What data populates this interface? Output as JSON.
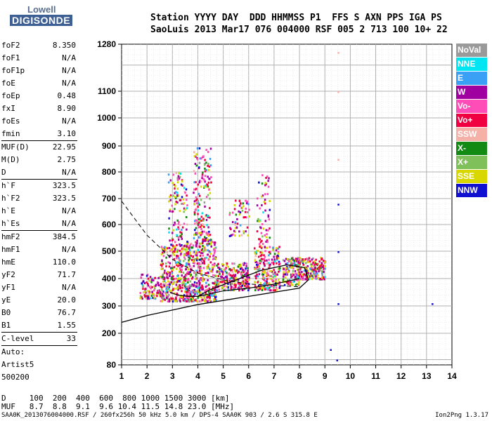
{
  "logo": {
    "line1": "Lowell",
    "line2": "DIGISONDE"
  },
  "header": {
    "line1": "Station YYYY DAY  DDD HHMMSS P1  FFS S AXN PPS IGA PS",
    "line2": "SaoLuis 2013 Mar17 076 004000 RSF 005 2 713 100 10+ 22"
  },
  "params": {
    "group1": [
      {
        "name": "foF2",
        "value": "8.350"
      },
      {
        "name": "foF1",
        "value": "N/A"
      },
      {
        "name": "foF1p",
        "value": "N/A"
      },
      {
        "name": "foE",
        "value": "N/A"
      },
      {
        "name": "foEp",
        "value": "0.48"
      },
      {
        "name": "fxI",
        "value": "8.90"
      },
      {
        "name": "foEs",
        "value": "N/A"
      },
      {
        "name": "fmin",
        "value": "3.10"
      }
    ],
    "group2": [
      {
        "name": "MUF(D)",
        "value": "22.95"
      },
      {
        "name": "M(D)",
        "value": "2.75"
      },
      {
        "name": "D",
        "value": "N/A"
      }
    ],
    "group3": [
      {
        "name": "h`F",
        "value": "323.5"
      },
      {
        "name": "h`F2",
        "value": "323.5"
      },
      {
        "name": "h`E",
        "value": "N/A"
      },
      {
        "name": "h`Es",
        "value": "N/A"
      }
    ],
    "group4": [
      {
        "name": "hmF2",
        "value": "384.5"
      },
      {
        "name": "hmF1",
        "value": "N/A"
      },
      {
        "name": "hmE",
        "value": "110.0"
      },
      {
        "name": "yF2",
        "value": "71.7"
      },
      {
        "name": "yF1",
        "value": "N/A"
      },
      {
        "name": "yE",
        "value": "20.0"
      },
      {
        "name": "B0",
        "value": "76.7"
      },
      {
        "name": "B1",
        "value": "1.55"
      }
    ],
    "clevel": {
      "name": "C-level",
      "value": "33"
    },
    "auto": [
      "Auto:",
      "Artist5",
      "500200"
    ]
  },
  "legend": [
    {
      "label": "NoVal",
      "color": "#9a9a9a"
    },
    {
      "label": "NNE",
      "color": "#00e5f2"
    },
    {
      "label": "E",
      "color": "#3aa0f5"
    },
    {
      "label": "W",
      "color": "#a000a0"
    },
    {
      "label": "Vo-",
      "color": "#ff4db8"
    },
    {
      "label": "Vo+",
      "color": "#f00040"
    },
    {
      "label": "SSW",
      "color": "#f5b0a8"
    },
    {
      "label": "X-",
      "color": "#138a13"
    },
    {
      "label": "X+",
      "color": "#7fc05a"
    },
    {
      "label": "SSE",
      "color": "#d8d800"
    },
    {
      "label": "NNW",
      "color": "#1010d0"
    }
  ],
  "footer": {
    "d_row": "D     100  200  400  600  800 1000 1500 3000 [km]",
    "muf_row": "MUF   8.7  8.8  9.1  9.6 10.4 11.5 14.8 23.0 [MHz]",
    "file_line": "SAA0K_2013076004000.RSF / 260fx256h 50 kHz 5.0 km / DPS-4 SAA0K 903 / 2.6 S 315.8 E",
    "version": "Ion2Png 1.3.17"
  },
  "chart_data": {
    "type": "scatter",
    "title": "",
    "xlabel": "",
    "ylabel": "",
    "xlim": [
      1,
      14
    ],
    "ylim": [
      80,
      1280
    ],
    "xticks": [
      1,
      2,
      3,
      4,
      5,
      6,
      7,
      8,
      9,
      10,
      11,
      12,
      13,
      14
    ],
    "yticks": [
      80,
      200,
      300,
      400,
      500,
      600,
      700,
      800,
      900,
      1000,
      1100,
      1280
    ],
    "grid": true,
    "clusters": [
      {
        "x": [
          1.7,
          2.8
        ],
        "y": [
          330,
          420
        ],
        "n": 130
      },
      {
        "x": [
          2.5,
          3.7
        ],
        "y": [
          320,
          520
        ],
        "n": 340
      },
      {
        "x": [
          2.8,
          3.6
        ],
        "y": [
          520,
          800
        ],
        "n": 120
      },
      {
        "x": [
          3.5,
          4.7
        ],
        "y": [
          320,
          540
        ],
        "n": 380
      },
      {
        "x": [
          3.8,
          4.5
        ],
        "y": [
          540,
          900
        ],
        "n": 180
      },
      {
        "x": [
          4.7,
          6.0
        ],
        "y": [
          360,
          460
        ],
        "n": 230
      },
      {
        "x": [
          5.2,
          6.0
        ],
        "y": [
          560,
          700
        ],
        "n": 60
      },
      {
        "x": [
          6.2,
          7.2
        ],
        "y": [
          360,
          520
        ],
        "n": 230
      },
      {
        "x": [
          6.3,
          6.8
        ],
        "y": [
          520,
          800
        ],
        "n": 60
      },
      {
        "x": [
          7.3,
          8.0
        ],
        "y": [
          380,
          480
        ],
        "n": 120
      },
      {
        "x": [
          7.9,
          9.0
        ],
        "y": [
          400,
          480
        ],
        "n": 200
      }
    ],
    "isolated": [
      {
        "x": 9.5,
        "y": 1250
      },
      {
        "x": 9.5,
        "y": 1100
      },
      {
        "x": 9.5,
        "y": 850
      },
      {
        "x": 9.5,
        "y": 680
      },
      {
        "x": 9.5,
        "y": 500
      },
      {
        "x": 9.5,
        "y": 310
      },
      {
        "x": 9.45,
        "y": 100
      },
      {
        "x": 9.2,
        "y": 140
      },
      {
        "x": 13.2,
        "y": 310
      }
    ],
    "profile_curve": {
      "x": [
        1,
        2,
        3,
        4,
        5,
        6,
        7,
        8,
        8.35,
        8.2,
        7.5,
        6.5,
        5.5,
        4.5,
        4.0
      ],
      "y": [
        240,
        265,
        285,
        305,
        320,
        335,
        350,
        365,
        395,
        440,
        450,
        430,
        395,
        360,
        335
      ]
    },
    "dashed_curve": {
      "x": [
        1,
        2,
        3,
        4,
        5,
        6,
        7,
        8
      ],
      "y": [
        690,
        560,
        470,
        420,
        395,
        380,
        375,
        370
      ]
    },
    "lower_trace": {
      "x": [
        2.9,
        3.2,
        3.6,
        4.0,
        4.5,
        5.0,
        5.5,
        6.0,
        6.5,
        7.0,
        7.5,
        8.0
      ],
      "y": [
        350,
        340,
        335,
        335,
        345,
        355,
        360,
        365,
        372,
        380,
        390,
        400
      ]
    }
  }
}
